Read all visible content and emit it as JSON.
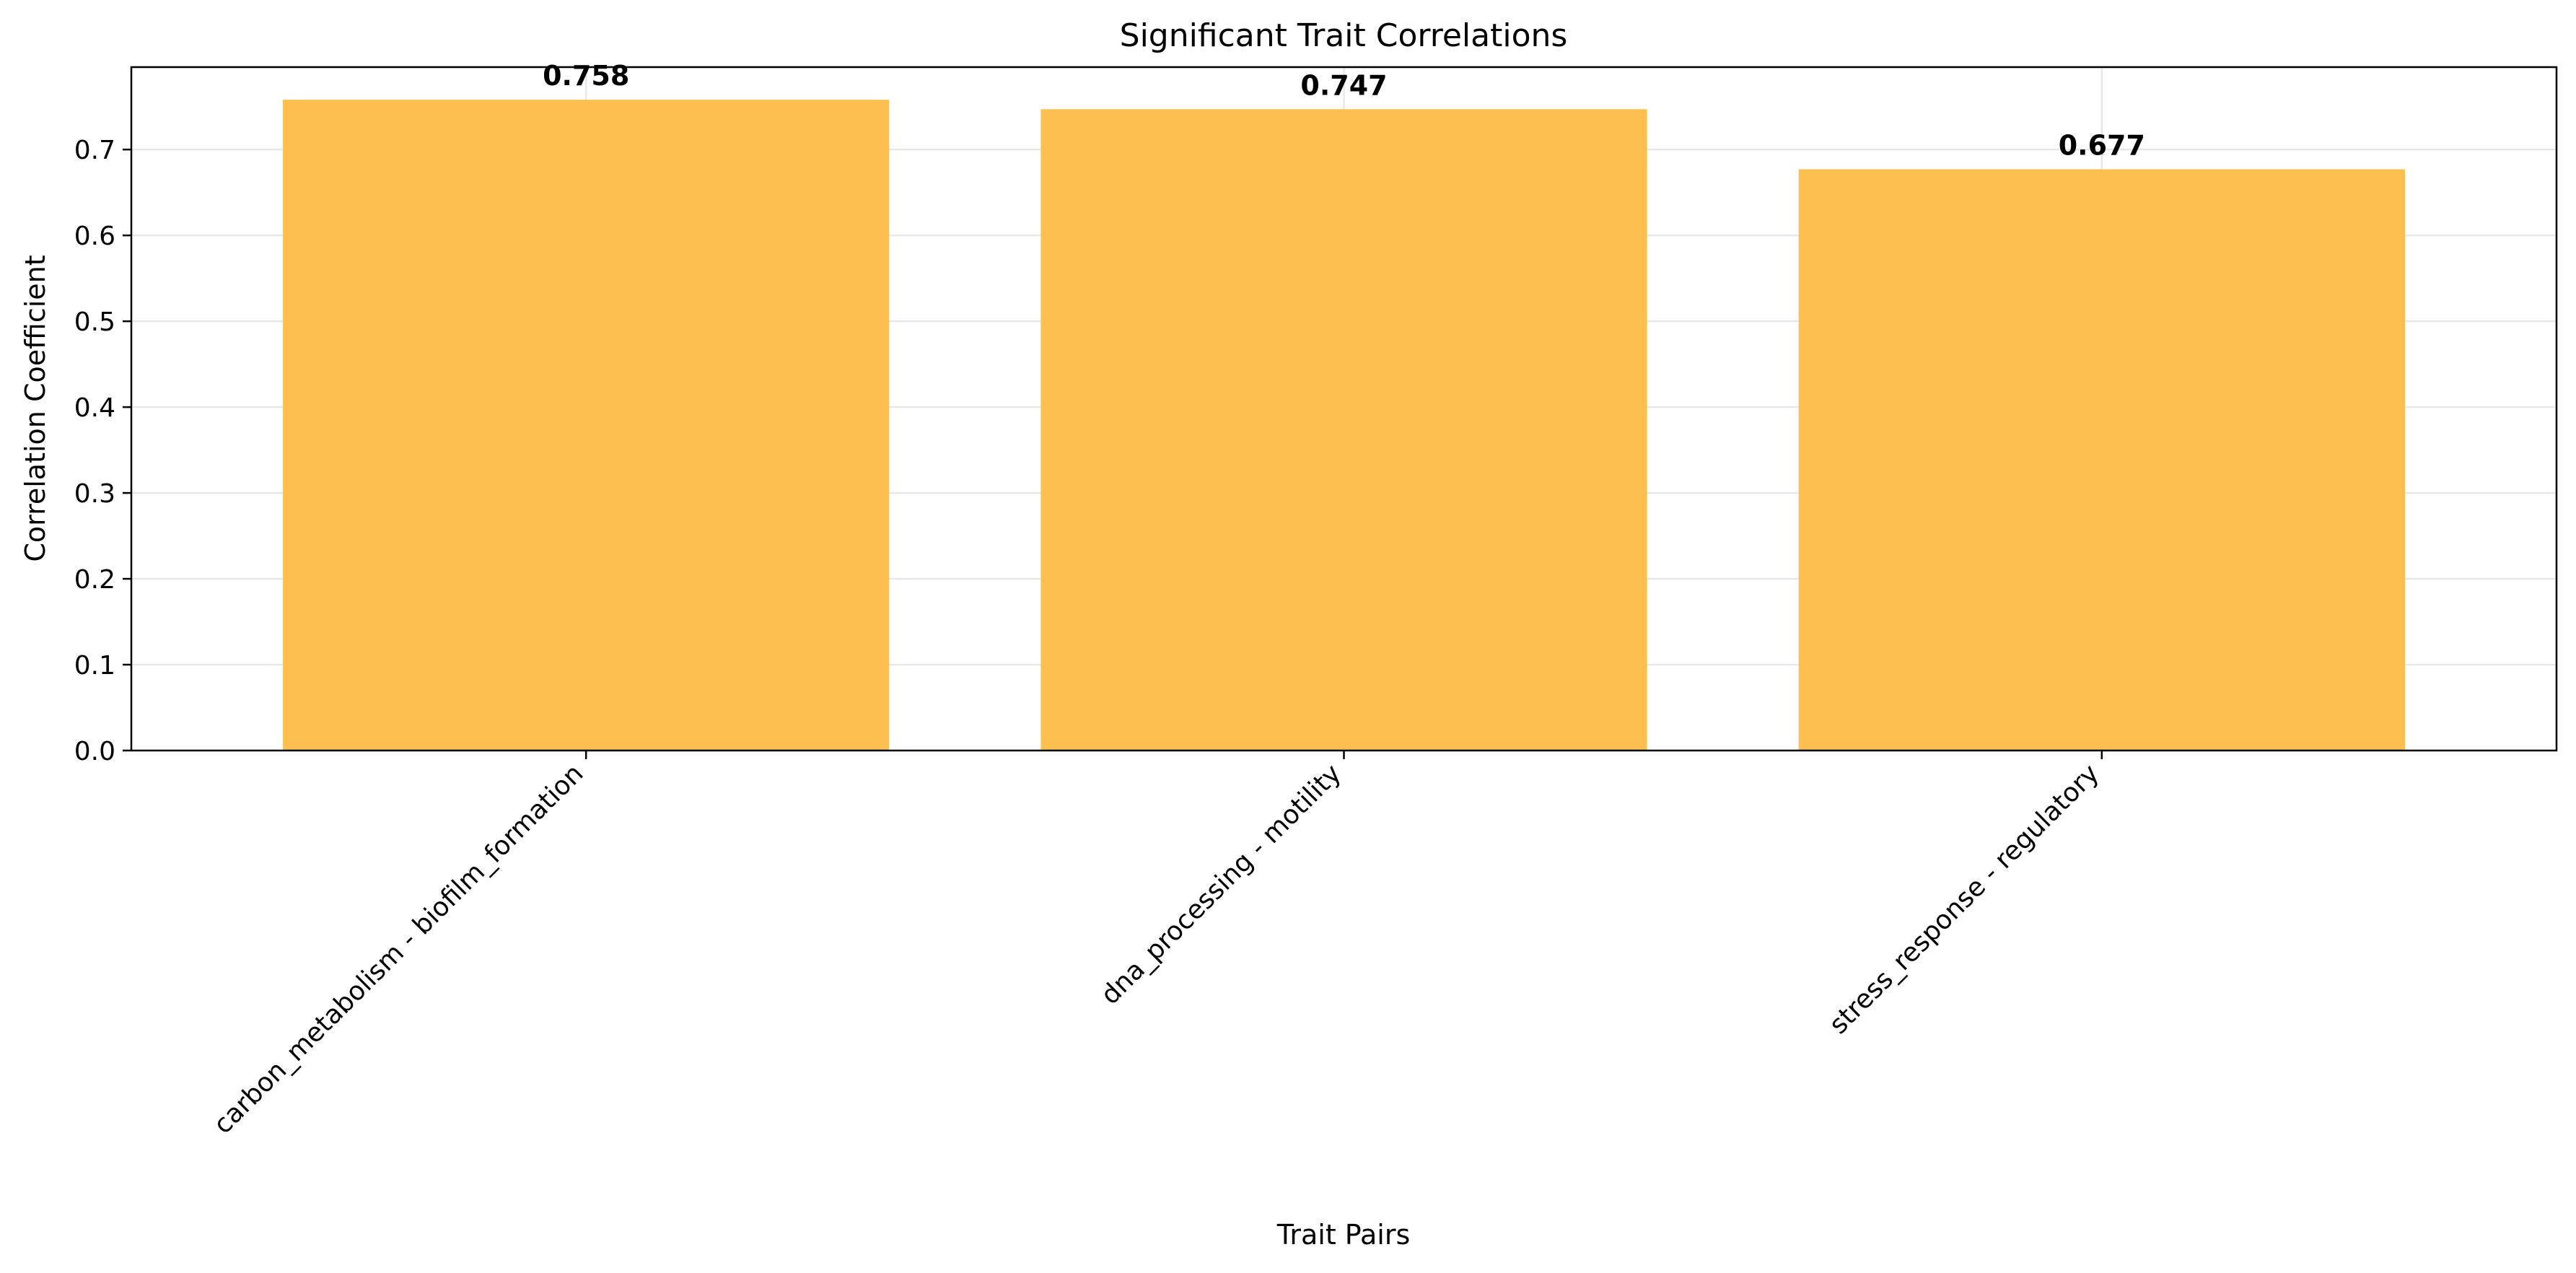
{
  "chart_data": {
    "type": "bar",
    "title": "Significant Trait Correlations",
    "xlabel": "Trait Pairs",
    "ylabel": "Correlation Coefficient",
    "categories": [
      "carbon_metabolism - biofilm_formation",
      "dna_processing - motility",
      "stress_response - regulatory"
    ],
    "values": [
      0.758,
      0.747,
      0.677
    ],
    "value_labels": [
      "0.758",
      "0.747",
      "0.677"
    ],
    "ylim": [
      0,
      0.796
    ],
    "yticks": [
      0.0,
      0.1,
      0.2,
      0.3,
      0.4,
      0.5,
      0.6,
      0.7
    ],
    "ytick_labels": [
      "0.0",
      "0.1",
      "0.2",
      "0.3",
      "0.4",
      "0.5",
      "0.6",
      "0.7"
    ],
    "grid": true,
    "bar_color": "#fdbf50",
    "xtick_rotation": "45 degrees"
  }
}
